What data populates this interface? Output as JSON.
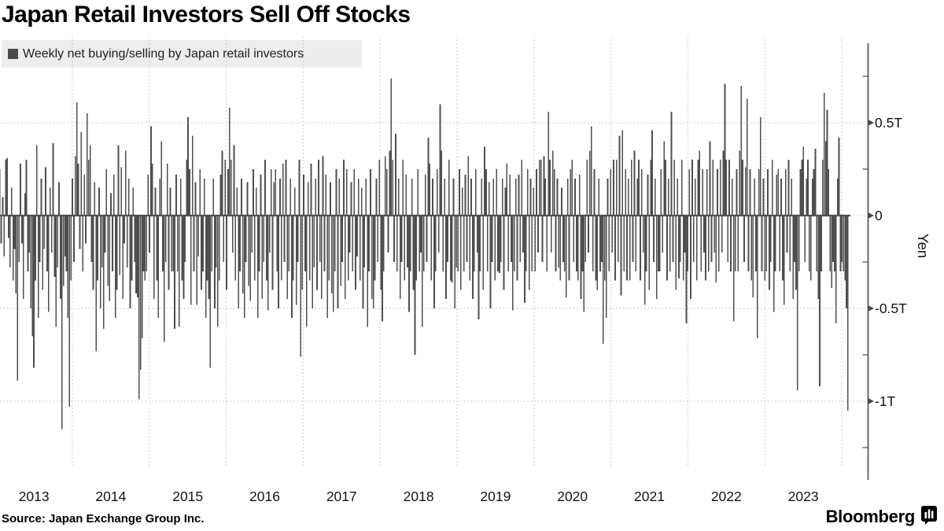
{
  "title": "Japan Retail Investors Sell Off Stocks",
  "legend": {
    "label": "Weekly net buying/selling by Japan retail investors",
    "swatch_color": "#4a4a4a",
    "background_color": "#ededed"
  },
  "source": "Source: Japan Exchange Group Inc.",
  "branding": {
    "logo_text": "Bloomberg"
  },
  "colors": {
    "bar": "#4f4f4f",
    "grid": "#bdbdbd",
    "axis": "#4a4a4a",
    "text": "#141414",
    "legend_bg": "#ededed"
  },
  "y_axis": {
    "title": "Yen",
    "ticks": [
      {
        "value": 0.5,
        "label": "0.5T"
      },
      {
        "value": 0,
        "label": "0"
      },
      {
        "value": -0.5,
        "label": "-0.5T"
      },
      {
        "value": -1,
        "label": "-1T"
      }
    ],
    "minor_ticks": [
      0.75,
      0.25,
      -0.25,
      -0.75,
      -1.25
    ]
  },
  "x_axis": {
    "tick_labels": [
      "2013",
      "2014",
      "2015",
      "2016",
      "2017",
      "2018",
      "2019",
      "2020",
      "2021",
      "2022",
      "2023"
    ]
  },
  "chart_data": {
    "type": "bar",
    "title": "Japan Retail Investors Sell Off Stocks",
    "series_name": "Weekly net buying/selling by Japan retail investors",
    "unit": "trillion yen",
    "frequency": "weekly",
    "x_start": "2013-01",
    "x_end": "2024-01",
    "xlabel": "",
    "ylabel": "Yen",
    "ylim": [
      -1.4,
      0.9
    ],
    "grid": true,
    "legend_position": "top-left",
    "y_tick_values": [
      0.5,
      0,
      -0.5,
      -1
    ],
    "values": [
      0.12,
      0.18,
      -0.08,
      0.25,
      -0.15,
      0.1,
      -0.22,
      0.3,
      0.31,
      -0.12,
      -0.28,
      0.15,
      -0.35,
      -0.18,
      -0.42,
      -0.89,
      -0.25,
      0.28,
      -0.15,
      -0.45,
      0.12,
      0.3,
      -0.3,
      -0.2,
      -0.5,
      -0.65,
      -0.82,
      -0.35,
      0.38,
      -0.55,
      -0.25,
      0.2,
      -0.4,
      -0.18,
      0.26,
      -0.3,
      -0.52,
      0.15,
      -0.2,
      0.39,
      -0.33,
      -0.6,
      -0.28,
      0.18,
      -0.45,
      -1.15,
      -0.38,
      -0.22,
      -0.3,
      -0.55,
      -1.03,
      -0.35,
      0.2,
      -0.25,
      0.32,
      0.61,
      0.28,
      -0.18,
      0.45,
      -0.3,
      0.22,
      -0.15,
      0.55,
      0.3,
      0.38,
      -0.25,
      -0.4,
      0.18,
      -0.73,
      -0.35,
      0.15,
      -0.5,
      -0.28,
      -0.61,
      -0.2,
      0.25,
      -0.38,
      -0.46,
      0.12,
      -0.3,
      0.22,
      -0.55,
      -0.4,
      0.38,
      -0.32,
      0.26,
      -0.45,
      -0.15,
      0.35,
      -0.28,
      0.2,
      -0.5,
      -0.35,
      0.15,
      -0.25,
      -0.42,
      -0.44,
      -0.99,
      -0.83,
      -0.66,
      -0.3,
      -0.35,
      -0.3,
      0.22,
      -0.2,
      0.48,
      0.28,
      -0.45,
      0.15,
      -0.35,
      -0.55,
      0.2,
      0.4,
      -0.3,
      -0.68,
      -0.25,
      0.28,
      -0.4,
      0.15,
      -0.3,
      -0.3,
      -0.61,
      0.22,
      -0.3,
      -0.6,
      0.2,
      -0.35,
      -0.45,
      -0.25,
      0.3,
      0.53,
      0.25,
      -0.48,
      0.43,
      -0.3,
      0.18,
      -0.48,
      -0.22,
      0.25,
      -0.4,
      -0.3,
      0.2,
      -0.55,
      -0.35,
      -0.45,
      -0.82,
      -0.3,
      0.2,
      -0.5,
      -0.28,
      -0.6,
      -0.35,
      0.22,
      0.35,
      -0.25,
      0.3,
      -0.4,
      0.25,
      0.58,
      0.3,
      -0.2,
      0.38,
      -0.35,
      0.15,
      -0.5,
      -0.3,
      0.2,
      -0.42,
      -0.55,
      -0.25,
      0.18,
      -0.38,
      -0.46,
      -0.2,
      0.25,
      -0.35,
      0.15,
      -0.55,
      -0.3,
      0.22,
      -0.45,
      -0.25,
      0.3,
      -0.35,
      -0.51,
      -0.2,
      0.25,
      -0.4,
      0.18,
      0.25,
      -0.3,
      -0.5,
      0.2,
      -0.35,
      0.28,
      -0.25,
      0.3,
      -0.45,
      -0.3,
      0.2,
      -0.55,
      -0.35,
      0.15,
      -0.48,
      -0.25,
      0.3,
      -0.76,
      -0.4,
      0.22,
      -0.3,
      -0.6,
      0.18,
      -0.35,
      0.28,
      -0.5,
      -0.28,
      0.2,
      -0.4,
      0.3,
      -0.25,
      -0.45,
      0.32,
      -0.3,
      0.22,
      -0.55,
      -0.35,
      0.18,
      -0.42,
      -0.52,
      -0.3,
      0.25,
      -0.5,
      0.2,
      -0.38,
      -0.25,
      0.3,
      -0.45,
      0.25,
      -0.35,
      -0.2,
      0.18,
      -0.3,
      0.25,
      -0.4,
      -0.22,
      0.2,
      -0.35,
      0.15,
      -0.5,
      -0.28,
      0.2,
      -0.6,
      -0.3,
      0.25,
      -0.45,
      -0.5,
      -0.35,
      0.2,
      -0.25,
      0.3,
      -0.4,
      -0.57,
      -0.3,
      0.32,
      0.25,
      -0.2,
      0.35,
      0.74,
      0.3,
      -0.25,
      0.44,
      -0.3,
      0.2,
      -0.45,
      -0.25,
      0.3,
      -0.35,
      0.22,
      -0.28,
      -0.52,
      -0.3,
      0.2,
      -0.4,
      -0.75,
      -0.35,
      0.25,
      -0.3,
      -0.2,
      -0.6,
      -0.3,
      0.22,
      -0.25,
      0.42,
      0.28,
      -0.35,
      0.2,
      -0.5,
      -0.3,
      0.25,
      -0.2,
      0.6,
      0.35,
      -0.3,
      0.2,
      -0.45,
      -0.25,
      0.3,
      -0.35,
      -0.36,
      0.2,
      -0.5,
      -0.28,
      -0.3,
      0.25,
      -0.4,
      0.15,
      -0.3,
      0.22,
      -0.25,
      0.32,
      -0.35,
      0.2,
      -0.45,
      -0.3,
      0.25,
      -0.2,
      -0.56,
      -0.3,
      0.2,
      -0.4,
      0.37,
      0.25,
      -0.3,
      0.18,
      -0.5,
      -0.25,
      0.2,
      -0.35,
      0.25,
      -0.3,
      -0.31,
      -0.25,
      0.2,
      -0.4,
      0.15,
      0.28,
      -0.3,
      0.22,
      -0.25,
      -0.51,
      -0.3,
      0.2,
      -0.35,
      0.22,
      -0.25,
      0.3,
      -0.2,
      -0.47,
      -0.3,
      0.25,
      -0.4,
      0.2,
      -0.3,
      0.15,
      -0.3,
      0.25,
      -0.2,
      0.3,
      0.3,
      -0.25,
      0.32,
      0.2,
      -0.3,
      0.56,
      0.3,
      -0.2,
      0.35,
      0.25,
      -0.3,
      0.2,
      -0.28,
      -0.35,
      0.15,
      -0.25,
      -0.3,
      -0.44,
      0.2,
      -0.35,
      0.25,
      0.3,
      -0.25,
      0.2,
      -0.3,
      -0.35,
      0.22,
      -0.45,
      -0.3,
      -0.52,
      -0.25,
      0.3,
      -0.2,
      0.35,
      0.48,
      -0.3,
      0.25,
      -0.35,
      -0.4,
      0.2,
      -0.3,
      -0.25,
      -0.69,
      -0.35,
      -0.55,
      0.2,
      -0.3,
      0.25,
      -0.2,
      0.3,
      -0.35,
      0.3,
      -0.25,
      0.43,
      -0.43,
      0.46,
      -0.3,
      0.25,
      -0.35,
      0.2,
      -0.35,
      0.3,
      -0.25,
      0.35,
      -0.3,
      0.2,
      0.3,
      -0.35,
      0.25,
      -0.2,
      -0.48,
      -0.3,
      0.22,
      -0.4,
      0.3,
      0.46,
      -0.25,
      0.2,
      -0.45,
      -0.3,
      -0.3,
      0.25,
      -0.2,
      0.4,
      0.3,
      -0.35,
      0.2,
      -0.3,
      0.56,
      -0.25,
      0.3,
      -0.4,
      0.2,
      -0.34,
      -0.25,
      0.3,
      -0.35,
      -0.2,
      -0.58,
      -0.3,
      0.25,
      -0.45,
      0.3,
      -0.25,
      0.2,
      -0.35,
      0.3,
      0.35,
      -0.3,
      0.25,
      -0.2,
      -0.35,
      0.25,
      -0.3,
      0.4,
      -0.25,
      0.3,
      -0.2,
      -0.36,
      0.25,
      -0.3,
      0.3,
      -0.2,
      0.35,
      0.71,
      0.3,
      -0.25,
      0.3,
      -0.3,
      0.2,
      -0.57,
      -0.3,
      0.25,
      -0.3,
      0.35,
      0.7,
      0.3,
      -0.25,
      0.26,
      0.63,
      -0.3,
      0.25,
      -0.35,
      -0.44,
      0.2,
      -0.3,
      -0.66,
      0.25,
      0.53,
      -0.3,
      0.2,
      -0.35,
      -0.3,
      0.25,
      -0.4,
      -0.25,
      0.3,
      -0.52,
      -0.3,
      0.22,
      0.25,
      -0.3,
      0.2,
      -0.35,
      -0.48,
      0.25,
      -0.2,
      0.3,
      -0.3,
      0.2,
      -0.45,
      -0.25,
      -0.4,
      -0.94,
      -0.3,
      0.25,
      0.3,
      0.37,
      -0.25,
      0.2,
      0.3,
      -0.3,
      -0.35,
      0.2,
      0.25,
      0.36,
      -0.3,
      -0.45,
      -0.92,
      -0.3,
      0.3,
      0.66,
      0.4,
      0.57,
      0.25,
      -0.3,
      -0.39,
      -0.25,
      -0.3,
      -0.58,
      0.2,
      0.42,
      -0.3,
      -0.25,
      -0.3,
      -0.35,
      -0.5,
      -1.05
    ]
  }
}
